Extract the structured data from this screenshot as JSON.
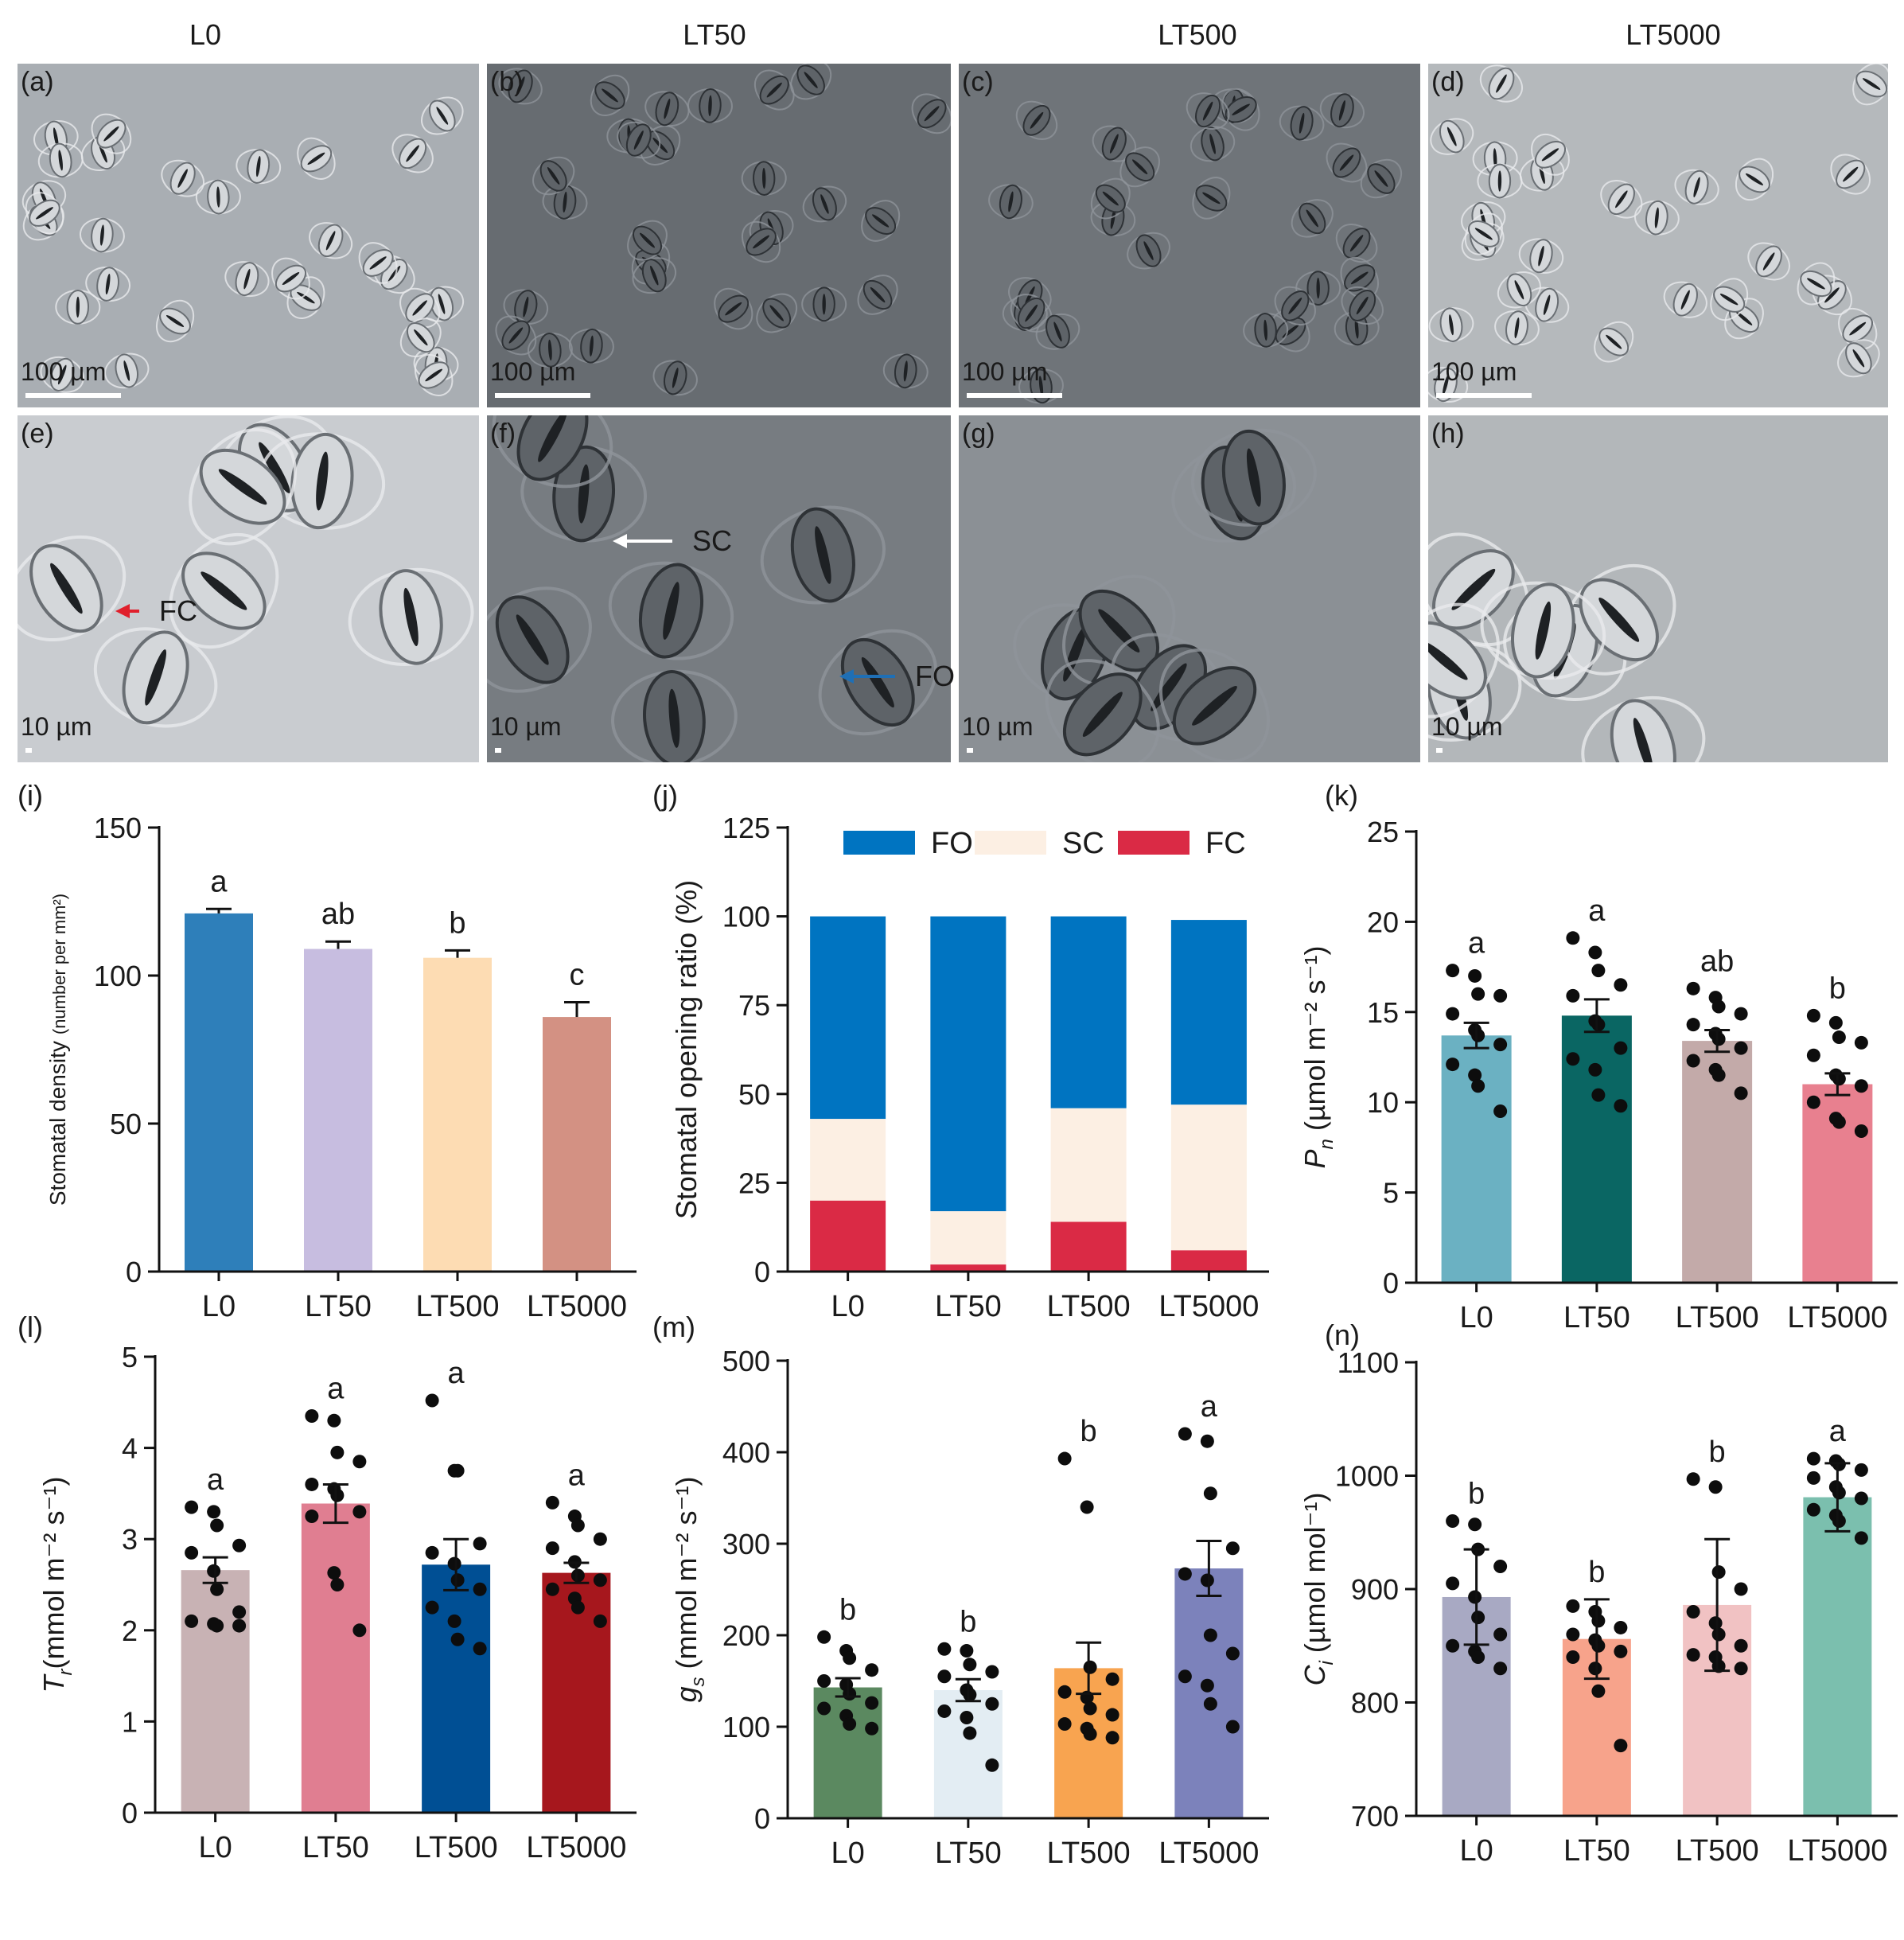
{
  "micrographs": {
    "columns": [
      "L0",
      "LT50",
      "LT500",
      "LT5000"
    ],
    "panels": [
      {
        "letter": "(a)",
        "scale": "100 µm",
        "tone": "#a9aeb3"
      },
      {
        "letter": "(b)",
        "scale": "100 µm",
        "tone": "#676c71"
      },
      {
        "letter": "(c)",
        "scale": "100 µm",
        "tone": "#6f7479"
      },
      {
        "letter": "(d)",
        "scale": "100 µm",
        "tone": "#b5b9bc"
      },
      {
        "letter": "(e)",
        "scale": "10 µm",
        "tone": "#c9ccd0"
      },
      {
        "letter": "(f)",
        "scale": "10 µm",
        "tone": "#777c81"
      },
      {
        "letter": "(g)",
        "scale": "10 µm",
        "tone": "#8b9095"
      },
      {
        "letter": "(h)",
        "scale": "10 µm",
        "tone": "#b3b7ba"
      }
    ],
    "annotations": [
      {
        "label": "FC",
        "panel": 4,
        "color": "#e0202c"
      },
      {
        "label": "SC",
        "panel": 5,
        "color": "#ffffff"
      },
      {
        "label": "FO",
        "panel": 5,
        "color": "#1f6fb5"
      }
    ]
  },
  "chart_data": [
    {
      "id": "i",
      "letter": "(i)",
      "type": "bar",
      "categories": [
        "L0",
        "LT50",
        "LT500",
        "LT5000"
      ],
      "values": [
        121,
        109,
        106,
        86
      ],
      "errors": [
        1.5,
        2.5,
        2.5,
        5
      ],
      "letters": [
        "a",
        "ab",
        "b",
        "c"
      ],
      "colors": [
        "#2e7fba",
        "#c7bde0",
        "#fddcb3",
        "#d39183"
      ],
      "ylabel": "Stomatal density",
      "ylabel_unit": "(number per mm²)",
      "ylim": [
        0,
        150
      ],
      "yticks": [
        0,
        50,
        100,
        150
      ]
    },
    {
      "id": "j",
      "letter": "(j)",
      "type": "bar",
      "stacked": true,
      "categories": [
        "L0",
        "LT50",
        "LT500",
        "LT5000"
      ],
      "series": [
        {
          "name": "FC",
          "color": "#da2a45",
          "values": [
            20,
            2,
            14,
            6
          ]
        },
        {
          "name": "SC",
          "color": "#fcefe3",
          "values": [
            23,
            15,
            32,
            41
          ]
        },
        {
          "name": "FO",
          "color": "#0074c1",
          "values": [
            57,
            83,
            54,
            52
          ]
        }
      ],
      "legend_order": [
        "FO",
        "SC",
        "FC"
      ],
      "legend": "top",
      "ylabel": "Stomatal opening ratio (%)",
      "ylim": [
        0,
        125
      ],
      "yticks": [
        0,
        25,
        50,
        75,
        100,
        125
      ]
    },
    {
      "id": "k",
      "letter": "(k)",
      "type": "bar",
      "categories": [
        "L0",
        "LT50",
        "LT500",
        "LT5000"
      ],
      "values": [
        13.7,
        14.8,
        13.4,
        11.0
      ],
      "errors": [
        0.7,
        0.9,
        0.6,
        0.6
      ],
      "letters": [
        "a",
        "a",
        "ab",
        "b"
      ],
      "colors": [
        "#6bb1c2",
        "#0a6663",
        "#c3aaa9",
        "#e8808f"
      ],
      "points": [
        [
          17.3,
          17.0,
          16.0,
          15.9,
          14.9,
          14.0,
          13.7,
          13.2,
          12.1,
          11.5,
          10.9,
          9.5
        ],
        [
          19.1,
          18.3,
          17.3,
          16.5,
          15.9,
          14.5,
          14.3,
          13.0,
          12.4,
          11.8,
          10.4,
          9.8
        ],
        [
          16.3,
          15.8,
          15.3,
          14.9,
          14.3,
          13.8,
          13.5,
          13.0,
          12.3,
          11.8,
          11.5,
          10.5
        ],
        [
          14.8,
          14.4,
          13.6,
          13.3,
          12.6,
          11.5,
          11.3,
          10.9,
          10.0,
          9.1,
          8.9,
          8.4
        ]
      ],
      "ylabel": "P",
      "ylabel_sub": "n",
      "ylabel_unit": " (µmol m⁻² s⁻¹)",
      "ylim": [
        0,
        25
      ],
      "yticks": [
        0,
        5,
        10,
        15,
        20,
        25
      ]
    },
    {
      "id": "l",
      "letter": "(l)",
      "type": "bar",
      "categories": [
        "L0",
        "LT50",
        "LT500",
        "LT5000"
      ],
      "values": [
        2.66,
        3.39,
        2.72,
        2.63
      ],
      "errors": [
        0.14,
        0.21,
        0.28,
        0.11
      ],
      "letters": [
        "a",
        "a",
        "a",
        "a"
      ],
      "colors": [
        "#c8b2b4",
        "#e07e91",
        "#004f94",
        "#a6171d"
      ],
      "points": [
        [
          3.35,
          3.3,
          3.15,
          2.93,
          2.85,
          2.65,
          2.45,
          2.2,
          2.1,
          2.07,
          2.05,
          2.05
        ],
        [
          4.35,
          4.3,
          3.95,
          3.85,
          3.6,
          3.55,
          3.48,
          3.3,
          3.25,
          2.63,
          2.5,
          2.0
        ],
        [
          4.52,
          3.75,
          3.75,
          2.95,
          2.85,
          2.73,
          2.55,
          2.45,
          2.25,
          2.1,
          1.9,
          1.8
        ],
        [
          3.4,
          3.25,
          3.15,
          3.0,
          2.9,
          2.75,
          2.6,
          2.55,
          2.45,
          2.35,
          2.25,
          2.1
        ]
      ],
      "ylabel": "T",
      "ylabel_sub": "r",
      "ylabel_unit": "(mmol m⁻² s⁻¹)",
      "ylim": [
        0,
        5
      ],
      "yticks": [
        0,
        1,
        2,
        3,
        4,
        5
      ]
    },
    {
      "id": "m",
      "letter": "(m)",
      "type": "bar",
      "categories": [
        "L0",
        "LT50",
        "LT500",
        "LT5000"
      ],
      "values": [
        143,
        140,
        164,
        273
      ],
      "errors": [
        10,
        12,
        28,
        30
      ],
      "letters": [
        "b",
        "b",
        "b",
        "a"
      ],
      "colors": [
        "#5b8960",
        "#e3edf3",
        "#f8a450",
        "#7c82bb"
      ],
      "points": [
        [
          198,
          183,
          175,
          162,
          150,
          146,
          136,
          126,
          120,
          112,
          103,
          98
        ],
        [
          185,
          183,
          168,
          160,
          155,
          140,
          135,
          125,
          117,
          110,
          93,
          58
        ],
        [
          393,
          340,
          165,
          152,
          138,
          132,
          120,
          113,
          103,
          98,
          92,
          88
        ],
        [
          420,
          412,
          355,
          295,
          267,
          260,
          200,
          180,
          155,
          145,
          125,
          100
        ]
      ],
      "ylabel": "g",
      "ylabel_sub": "s",
      "ylabel_unit": " (mmol m⁻² s⁻¹)",
      "ylim": [
        0,
        500
      ],
      "yticks": [
        0,
        100,
        200,
        300,
        400,
        500
      ]
    },
    {
      "id": "n",
      "letter": "(n)",
      "type": "bar",
      "categories": [
        "L0",
        "LT50",
        "LT500",
        "LT5000"
      ],
      "values": [
        893,
        856,
        886,
        981
      ],
      "errors": [
        42,
        35,
        58,
        30
      ],
      "letters": [
        "b",
        "b",
        "b",
        "a"
      ],
      "colors": [
        "#a8a9c3",
        "#f7a38b",
        "#f1c2c3",
        "#7bbfae"
      ],
      "points": [
        [
          960,
          957,
          935,
          920,
          905,
          893,
          875,
          860,
          850,
          845,
          840,
          830
        ],
        [
          885,
          880,
          872,
          866,
          860,
          855,
          850,
          845,
          840,
          830,
          810,
          762
        ],
        [
          997,
          990,
          915,
          900,
          880,
          870,
          860,
          850,
          842,
          840,
          832,
          830
        ],
        [
          1015,
          1013,
          1010,
          1005,
          998,
          990,
          985,
          980,
          970,
          965,
          960,
          945
        ]
      ],
      "ylabel": "C",
      "ylabel_sub": "i",
      "ylabel_unit": " (µmol mol⁻¹)",
      "ylim": [
        700,
        1100
      ],
      "yticks": [
        700,
        800,
        900,
        1000,
        1100
      ]
    }
  ]
}
